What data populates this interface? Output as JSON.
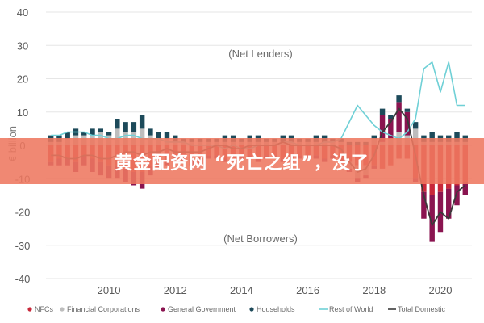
{
  "banner": {
    "text": "黄金配资网 “死亡之组”，没了"
  },
  "colors": {
    "nfcs": "#c8283a",
    "financial": "#bdbdbd",
    "government": "#8a1450",
    "households": "#1d4a5a",
    "row": "#6fd0d6",
    "total": "#3a3a3a",
    "grid": "#e6e6e6",
    "banner": "#ee7860"
  },
  "chart_data": {
    "type": "bar",
    "ylabel": "€ billion",
    "ylim": [
      -40,
      40
    ],
    "yticks": [
      -40,
      -30,
      -20,
      -10,
      0,
      10,
      20,
      30,
      40
    ],
    "xticks": [
      {
        "x": 2010,
        "label": "2010"
      },
      {
        "x": 2012,
        "label": "2012"
      },
      {
        "x": 2014,
        "label": "2014"
      },
      {
        "x": 2016,
        "label": "2016"
      },
      {
        "x": 2018,
        "label": "2018"
      },
      {
        "x": 2020,
        "label": "2020"
      }
    ],
    "xlim": [
      2008.1,
      2020.95
    ],
    "annotations": {
      "top": "(Net Lenders)",
      "bottom": "(Net Borrowers)"
    },
    "x": [
      2008.25,
      2008.5,
      2008.75,
      2009.0,
      2009.25,
      2009.5,
      2009.75,
      2010.0,
      2010.25,
      2010.5,
      2010.75,
      2011.0,
      2011.25,
      2011.5,
      2011.75,
      2012.0,
      2012.25,
      2012.5,
      2012.75,
      2013.0,
      2013.25,
      2013.5,
      2013.75,
      2014.0,
      2014.25,
      2014.5,
      2014.75,
      2015.0,
      2015.25,
      2015.5,
      2015.75,
      2016.0,
      2016.25,
      2016.5,
      2016.75,
      2017.0,
      2017.25,
      2017.5,
      2017.75,
      2018.0,
      2018.25,
      2018.5,
      2018.75,
      2019.0,
      2019.25,
      2019.5,
      2019.75,
      2020.0,
      2020.25,
      2020.5,
      2020.75
    ],
    "series": [
      {
        "name": "NFCs",
        "key": "nfcs",
        "kind": "bar",
        "values": [
          -5,
          -4,
          -4,
          -5,
          -3,
          -4,
          -5,
          -6,
          -6,
          -7,
          -8,
          -8,
          -6,
          -5,
          -4,
          -3,
          -3,
          -4,
          -4,
          -3,
          -3,
          -4,
          -4,
          -3,
          -3,
          -4,
          -3,
          -3,
          -4,
          -4,
          -3,
          -3,
          -3,
          -4,
          -3,
          -4,
          -5,
          -6,
          -6,
          -6,
          -7,
          -6,
          -4,
          -4,
          -10,
          -14,
          -15,
          -14,
          -13,
          -12,
          -11
        ]
      },
      {
        "name": "Financial Corporations",
        "key": "financial",
        "kind": "bar",
        "values": [
          1,
          1,
          2,
          3,
          3,
          3,
          4,
          3,
          5,
          4,
          4,
          5,
          3,
          2,
          2,
          1,
          1,
          1,
          1,
          1,
          1,
          1,
          1,
          1,
          1,
          1,
          1,
          1,
          1,
          1,
          1,
          1,
          1,
          1,
          1,
          1,
          -2,
          -4,
          -3,
          2,
          1,
          2,
          4,
          3,
          5,
          1,
          1,
          1,
          1,
          1,
          1
        ]
      },
      {
        "name": "General Government",
        "key": "government",
        "kind": "bar",
        "values": [
          -1,
          -2,
          -2,
          -3,
          -3,
          -4,
          -4,
          -4,
          -4,
          -4,
          -4,
          -5,
          -3,
          -2,
          -2,
          -2,
          -2,
          -2,
          -2,
          -1,
          -1,
          -1,
          -1,
          -1,
          -1,
          -1,
          -1,
          -1,
          -1,
          -1,
          -1,
          -1,
          -1,
          -1,
          -1,
          -1,
          -1,
          -1,
          -1,
          -1,
          8,
          6,
          9,
          7,
          -1,
          -8,
          -14,
          -12,
          -9,
          -6,
          -4
        ]
      },
      {
        "name": "Households",
        "key": "households",
        "kind": "bar",
        "values": [
          2,
          2,
          2,
          2,
          1,
          2,
          1,
          1,
          3,
          3,
          3,
          4,
          2,
          2,
          2,
          2,
          1,
          1,
          1,
          1,
          1,
          2,
          2,
          1,
          2,
          2,
          1,
          1,
          2,
          2,
          1,
          1,
          2,
          2,
          1,
          1,
          1,
          1,
          1,
          1,
          2,
          1,
          2,
          1,
          2,
          2,
          3,
          2,
          2,
          3,
          2
        ]
      },
      {
        "name": "Rest of World",
        "key": "row",
        "kind": "line",
        "values": [
          3,
          3,
          4,
          4,
          4,
          3,
          3,
          2,
          2,
          3,
          3,
          2,
          2,
          2,
          1,
          1,
          1,
          0,
          0,
          0,
          0,
          -1,
          0,
          -1,
          -1,
          0,
          0,
          0,
          1,
          1,
          0,
          0,
          0,
          1,
          1,
          2,
          7,
          12,
          9,
          6,
          4,
          3,
          2,
          4,
          8,
          23,
          25,
          16,
          25,
          12,
          12
        ]
      },
      {
        "name": "Total Domestic",
        "key": "total",
        "kind": "line",
        "values": [
          -3,
          -3,
          -4,
          -4,
          -3,
          -3,
          -4,
          -4,
          -3,
          -2,
          -2,
          -3,
          -2,
          -2,
          -1,
          -2,
          -2,
          -2,
          -2,
          -1,
          0,
          0,
          -1,
          -1,
          0,
          0,
          0,
          0,
          1,
          0,
          0,
          0,
          0,
          0,
          0,
          -1,
          -5,
          -8,
          -7,
          -3,
          4,
          7,
          11,
          8,
          -3,
          -15,
          -24,
          -20,
          -22,
          -14,
          -12
        ]
      }
    ]
  }
}
